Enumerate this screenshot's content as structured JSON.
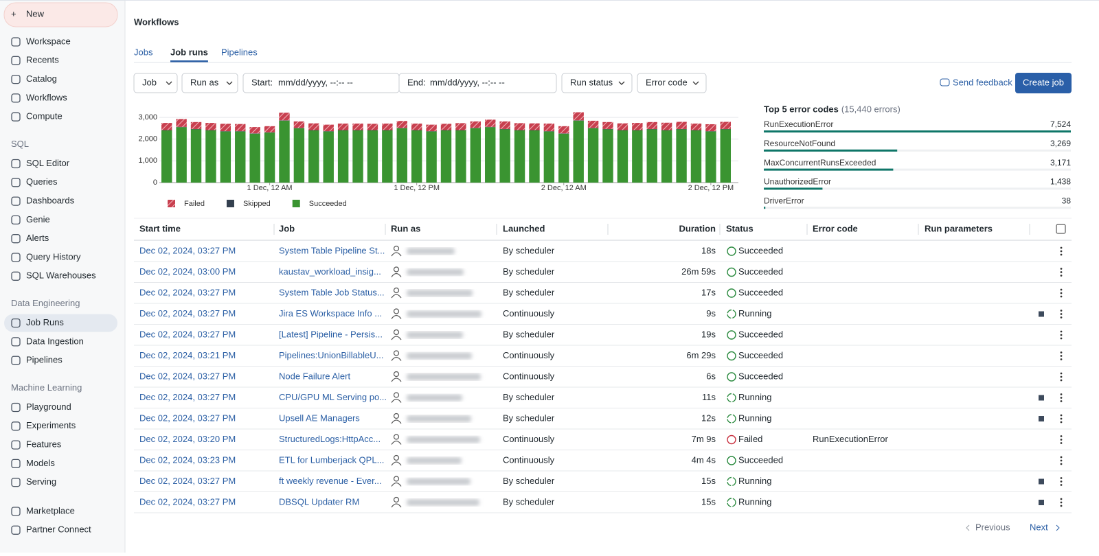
{
  "sidebar": {
    "new": "New",
    "top_items": [
      "Workspace",
      "Recents",
      "Catalog",
      "Workflows",
      "Compute"
    ],
    "sections": [
      {
        "heading": "SQL",
        "items": [
          "SQL Editor",
          "Queries",
          "Dashboards",
          "Genie",
          "Alerts",
          "Query History",
          "SQL Warehouses"
        ]
      },
      {
        "heading": "Data Engineering",
        "items": [
          "Job Runs",
          "Data Ingestion",
          "Pipelines"
        ]
      },
      {
        "heading": "Machine Learning",
        "items": [
          "Playground",
          "Experiments",
          "Features",
          "Models",
          "Serving"
        ]
      }
    ],
    "bottom_items": [
      "Marketplace",
      "Partner Connect"
    ],
    "selected": "Job Runs"
  },
  "header": {
    "title": "Workflows",
    "tabs": [
      "Jobs",
      "Job runs",
      "Pipelines"
    ],
    "active_tab": "Job runs"
  },
  "filters": {
    "job": "Job",
    "run_as": "Run as",
    "start_label": "Start:",
    "start_placeholder": "mm/dd/yyyy, --:-- --",
    "end_label": "End:",
    "end_placeholder": "mm/dd/yyyy, --:-- --",
    "run_status": "Run status",
    "error_code": "Error code",
    "send_feedback": "Send feedback",
    "create_job": "Create job"
  },
  "chart_data": {
    "type": "bar",
    "stacked": true,
    "categories": [
      null,
      null,
      null,
      null,
      null,
      null,
      null,
      "1 Dec, 12 AM",
      null,
      null,
      null,
      null,
      null,
      null,
      null,
      null,
      null,
      "1 Dec, 12 PM",
      null,
      null,
      null,
      null,
      null,
      null,
      null,
      null,
      null,
      "2 Dec, 12 AM",
      null,
      null,
      null,
      null,
      null,
      null,
      null,
      null,
      null,
      "2 Dec, 12 PM",
      null
    ],
    "series": [
      {
        "name": "Succeeded",
        "color": "#3a9431",
        "values": [
          2400,
          2550,
          2450,
          2400,
          2350,
          2350,
          2250,
          2300,
          2850,
          2500,
          2400,
          2350,
          2400,
          2400,
          2400,
          2400,
          2500,
          2400,
          2350,
          2400,
          2400,
          2500,
          2550,
          2450,
          2400,
          2400,
          2350,
          2250,
          2850,
          2500,
          2450,
          2400,
          2400,
          2450,
          2400,
          2450,
          2400,
          2350,
          2450
        ]
      },
      {
        "name": "Skipped",
        "color": "#34404f",
        "values": [
          15,
          15,
          15,
          15,
          15,
          15,
          15,
          15,
          15,
          15,
          15,
          15,
          15,
          15,
          15,
          15,
          15,
          15,
          15,
          15,
          15,
          15,
          15,
          15,
          15,
          15,
          15,
          15,
          15,
          15,
          15,
          15,
          15,
          15,
          15,
          15,
          15,
          15,
          15
        ]
      },
      {
        "name": "Failed",
        "color": "#c8404f",
        "hatched": true,
        "values": [
          330,
          360,
          320,
          330,
          340,
          330,
          290,
          280,
          350,
          300,
          310,
          300,
          300,
          300,
          290,
          300,
          320,
          300,
          300,
          290,
          320,
          300,
          330,
          350,
          320,
          310,
          350,
          330,
          370,
          330,
          320,
          310,
          330,
          320,
          340,
          330,
          300,
          320,
          330
        ]
      }
    ],
    "legend_order": [
      "Failed",
      "Skipped",
      "Succeeded"
    ],
    "ylim": [
      0,
      3300
    ],
    "yticks": [
      0,
      {
        "value": 1000,
        "label": "1,000"
      },
      {
        "value": 2000,
        "label": "2,000"
      },
      {
        "value": 3000,
        "label": "3,000"
      }
    ],
    "grid": true
  },
  "error_codes": {
    "title": "Top 5 error codes",
    "subtitle": "(15,440 errors)",
    "color": "#0e7668",
    "items": [
      {
        "name": "RunExecutionError",
        "value": 7524,
        "value_label": "7,524"
      },
      {
        "name": "ResourceNotFound",
        "value": 3269,
        "value_label": "3,269"
      },
      {
        "name": "MaxConcurrentRunsExceeded",
        "value": 3171,
        "value_label": "3,171"
      },
      {
        "name": "UnauthorizedError",
        "value": 1438,
        "value_label": "1,438"
      },
      {
        "name": "DriverError",
        "value": 38,
        "value_label": "38"
      }
    ]
  },
  "table": {
    "headers": [
      "Start time",
      "Job",
      "Run as",
      "Launched",
      "Duration",
      "Status",
      "Error code",
      "Run parameters"
    ],
    "rows": [
      {
        "start": "Dec 02, 2024, 03:27 PM",
        "job": "System Table Pipeline St...",
        "launched": "By scheduler",
        "duration": "18s",
        "status": "Succeeded"
      },
      {
        "start": "Dec 02, 2024, 03:00 PM",
        "job": "kaustav_workload_insig...",
        "launched": "By scheduler",
        "duration": "26m 59s",
        "status": "Succeeded"
      },
      {
        "start": "Dec 02, 2024, 03:27 PM",
        "job": "System Table Job Status...",
        "launched": "By scheduler",
        "duration": "17s",
        "status": "Succeeded"
      },
      {
        "start": "Dec 02, 2024, 03:27 PM",
        "job": "Jira ES Workspace Info ...",
        "launched": "Continuously",
        "duration": "9s",
        "status": "Running"
      },
      {
        "start": "Dec 02, 2024, 03:27 PM",
        "job": "[Latest] Pipeline - Persis...",
        "launched": "By scheduler",
        "duration": "19s",
        "status": "Succeeded"
      },
      {
        "start": "Dec 02, 2024, 03:21 PM",
        "job": "Pipelines:UnionBillableU...",
        "launched": "Continuously",
        "duration": "6m 29s",
        "status": "Succeeded"
      },
      {
        "start": "Dec 02, 2024, 03:27 PM",
        "job": "Node Failure Alert",
        "launched": "Continuously",
        "duration": "6s",
        "status": "Succeeded"
      },
      {
        "start": "Dec 02, 2024, 03:27 PM",
        "job": "CPU/GPU ML Serving po...",
        "launched": "By scheduler",
        "duration": "11s",
        "status": "Running"
      },
      {
        "start": "Dec 02, 2024, 03:27 PM",
        "job": "Upsell AE Managers",
        "launched": "By scheduler",
        "duration": "12s",
        "status": "Running"
      },
      {
        "start": "Dec 02, 2024, 03:20 PM",
        "job": "StructuredLogs:HttpAcc...",
        "launched": "Continuously",
        "duration": "7m 9s",
        "status": "Failed",
        "error": "RunExecutionError"
      },
      {
        "start": "Dec 02, 2024, 03:23 PM",
        "job": "ETL for Lumberjack QPL...",
        "launched": "Continuously",
        "duration": "4m 4s",
        "status": "Succeeded"
      },
      {
        "start": "Dec 02, 2024, 03:27 PM",
        "job": "ft weekly revenue - Ever...",
        "launched": "By scheduler",
        "duration": "15s",
        "status": "Running"
      },
      {
        "start": "Dec 02, 2024, 03:27 PM",
        "job": "DBSQL Updater RM",
        "launched": "By scheduler",
        "duration": "15s",
        "status": "Running"
      }
    ]
  },
  "pagination": {
    "previous": "Previous",
    "next": "Next"
  }
}
